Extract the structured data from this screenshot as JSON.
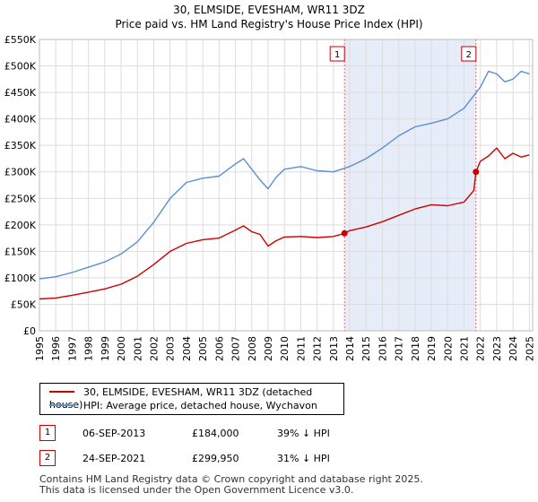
{
  "chart_data": {
    "type": "line",
    "title": "30, ELMSIDE, EVESHAM, WR11 3DZ",
    "subtitle": "Price paid vs. HM Land Registry's House Price Index (HPI)",
    "xlim": [
      1995,
      2025.2
    ],
    "ylim": [
      0,
      550000
    ],
    "x_ticks": [
      1995,
      1996,
      1997,
      1998,
      1999,
      2000,
      2001,
      2002,
      2003,
      2004,
      2005,
      2006,
      2007,
      2008,
      2009,
      2010,
      2011,
      2012,
      2013,
      2014,
      2015,
      2016,
      2017,
      2018,
      2019,
      2020,
      2021,
      2022,
      2023,
      2024,
      2025
    ],
    "y_ticks": [
      {
        "value": 0,
        "label": "£0"
      },
      {
        "value": 50000,
        "label": "£50K"
      },
      {
        "value": 100000,
        "label": "£100K"
      },
      {
        "value": 150000,
        "label": "£150K"
      },
      {
        "value": 200000,
        "label": "£200K"
      },
      {
        "value": 250000,
        "label": "£250K"
      },
      {
        "value": 300000,
        "label": "£300K"
      },
      {
        "value": 350000,
        "label": "£350K"
      },
      {
        "value": 400000,
        "label": "£400K"
      },
      {
        "value": 450000,
        "label": "£450K"
      },
      {
        "value": 500000,
        "label": "£500K"
      },
      {
        "value": 550000,
        "label": "£550K"
      }
    ],
    "grid": true,
    "shaded_band": [
      2013.68,
      2021.73
    ],
    "series": [
      {
        "name": "30, ELMSIDE, EVESHAM, WR11 3DZ (detached house)",
        "color": "#cc0000",
        "x": [
          1995,
          1996,
          1997,
          1998,
          1999,
          2000,
          2001,
          2002,
          2003,
          2004,
          2005,
          2006,
          2007,
          2007.5,
          2008,
          2008.5,
          2009,
          2009.5,
          2010,
          2011,
          2012,
          2013,
          2013.68,
          2014,
          2015,
          2016,
          2017,
          2018,
          2019,
          2020,
          2021,
          2021.6,
          2021.73,
          2022,
          2022.5,
          2023,
          2023.5,
          2024,
          2024.5,
          2025
        ],
        "values": [
          60000,
          62000,
          67000,
          73000,
          79000,
          88000,
          103000,
          125000,
          150000,
          165000,
          172000,
          175000,
          190000,
          198000,
          187000,
          182000,
          160000,
          170000,
          177000,
          178000,
          176000,
          178000,
          184000,
          189000,
          196000,
          206000,
          218000,
          230000,
          238000,
          236000,
          243000,
          265000,
          299950,
          320000,
          330000,
          345000,
          325000,
          335000,
          328000,
          332000
        ]
      },
      {
        "name": "HPI: Average price, detached house, Wychavon",
        "color": "#5b8fcf",
        "x": [
          1995,
          1996,
          1997,
          1998,
          1999,
          2000,
          2001,
          2002,
          2003,
          2004,
          2005,
          2006,
          2007,
          2007.5,
          2008,
          2008.5,
          2009,
          2009.5,
          2010,
          2011,
          2012,
          2013,
          2014,
          2015,
          2016,
          2017,
          2018,
          2019,
          2020,
          2021,
          2022,
          2022.5,
          2023,
          2023.5,
          2024,
          2024.5,
          2025
        ],
        "values": [
          98000,
          102000,
          110000,
          120000,
          130000,
          145000,
          168000,
          205000,
          250000,
          280000,
          288000,
          292000,
          315000,
          325000,
          305000,
          285000,
          268000,
          290000,
          305000,
          310000,
          302000,
          300000,
          310000,
          325000,
          345000,
          368000,
          385000,
          392000,
          400000,
          420000,
          460000,
          490000,
          485000,
          470000,
          475000,
          490000,
          485000
        ]
      }
    ],
    "annotations": [
      {
        "label": "1",
        "x": 2013.68,
        "price": 184000
      },
      {
        "label": "2",
        "x": 2021.73,
        "price": 299950
      }
    ]
  },
  "legend": {
    "property_label": "30, ELMSIDE, EVESHAM, WR11 3DZ (detached house)",
    "hpi_label": "HPI: Average price, detached house, Wychavon"
  },
  "sales": [
    {
      "num": "1",
      "date": "06-SEP-2013",
      "price": "£184,000",
      "hpi": "39% ↓ HPI"
    },
    {
      "num": "2",
      "date": "24-SEP-2021",
      "price": "£299,950",
      "hpi": "31% ↓ HPI"
    }
  ],
  "footer": {
    "line1": "Contains HM Land Registry data © Crown copyright and database right 2025.",
    "line2": "This data is licensed under the Open Government Licence v3.0."
  }
}
